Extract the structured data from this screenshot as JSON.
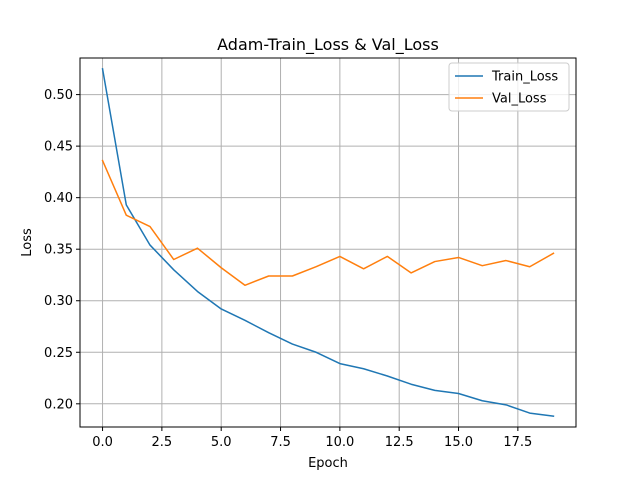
{
  "chart_data": {
    "type": "line",
    "title": "Adam-Train_Loss & Val_Loss",
    "xlabel": "Epoch",
    "ylabel": "Loss",
    "xlim": [
      -0.95,
      19.95
    ],
    "ylim": [
      0.1775,
      0.5355
    ],
    "xticks": [
      0,
      2.5,
      5,
      7.5,
      10,
      12.5,
      15,
      17.5
    ],
    "xtick_labels": [
      "0.0",
      "2.5",
      "5.0",
      "7.5",
      "10.0",
      "12.5",
      "15.0",
      "17.5"
    ],
    "yticks": [
      0.2,
      0.25,
      0.3,
      0.35,
      0.4,
      0.45,
      0.5
    ],
    "ytick_labels": [
      "0.20",
      "0.25",
      "0.30",
      "0.35",
      "0.40",
      "0.45",
      "0.50"
    ],
    "grid": true,
    "legend": "top-right",
    "x": [
      0,
      1,
      2,
      3,
      4,
      5,
      6,
      7,
      8,
      9,
      10,
      11,
      12,
      13,
      14,
      15,
      16,
      17,
      18,
      19
    ],
    "series": [
      {
        "name": "Train_Loss",
        "color": "#1f77b4",
        "values": [
          0.525,
          0.393,
          0.354,
          0.33,
          0.309,
          0.292,
          0.281,
          0.269,
          0.258,
          0.25,
          0.239,
          0.234,
          0.227,
          0.219,
          0.213,
          0.21,
          0.203,
          0.199,
          0.191,
          0.188
        ]
      },
      {
        "name": "Val_Loss",
        "color": "#ff7f0e",
        "values": [
          0.436,
          0.383,
          0.372,
          0.34,
          0.351,
          0.332,
          0.315,
          0.324,
          0.324,
          0.333,
          0.343,
          0.331,
          0.343,
          0.327,
          0.338,
          0.342,
          0.334,
          0.339,
          0.333,
          0.346
        ]
      }
    ]
  }
}
